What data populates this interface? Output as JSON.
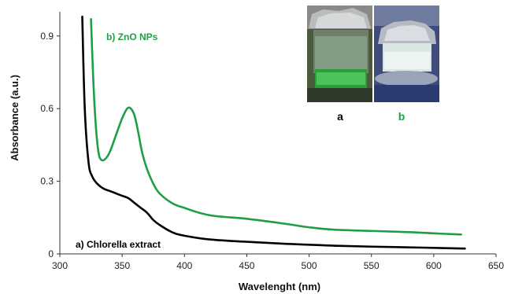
{
  "chart_data": {
    "type": "line",
    "xlabel": "Wavelenght (nm)",
    "ylabel": "Absorbance (a.u.)",
    "xlim": [
      300,
      650
    ],
    "ylim": [
      0,
      1.0
    ],
    "x_ticks": [
      300,
      350,
      400,
      450,
      500,
      550,
      600,
      650
    ],
    "y_ticks": [
      0,
      0.3,
      0.6,
      0.9
    ],
    "x_tick_labels": [
      "300",
      "350",
      "400",
      "450",
      "500",
      "550",
      "600",
      "650"
    ],
    "y_tick_labels": [
      "0",
      "0.3",
      "0.6",
      "0.9"
    ],
    "grid": false,
    "series": [
      {
        "name": "a) Chlorella extract",
        "color": "#000000",
        "x": [
          318,
          320,
          323,
          326,
          330,
          335,
          340,
          345,
          350,
          355,
          360,
          365,
          370,
          375,
          380,
          390,
          400,
          420,
          450,
          480,
          500,
          520,
          550,
          580,
          600,
          625
        ],
        "y": [
          0.98,
          0.6,
          0.38,
          0.32,
          0.29,
          0.27,
          0.26,
          0.25,
          0.24,
          0.23,
          0.21,
          0.19,
          0.17,
          0.14,
          0.12,
          0.09,
          0.075,
          0.06,
          0.05,
          0.042,
          0.038,
          0.034,
          0.03,
          0.027,
          0.025,
          0.022
        ]
      },
      {
        "name": "b) ZnO NPs",
        "color": "#1f9e45",
        "x": [
          325,
          327,
          329,
          331,
          333,
          336,
          340,
          345,
          350,
          354,
          357,
          360,
          363,
          366,
          370,
          375,
          380,
          390,
          400,
          420,
          450,
          480,
          500,
          520,
          550,
          580,
          600,
          622
        ],
        "y": [
          0.97,
          0.7,
          0.52,
          0.42,
          0.39,
          0.39,
          0.42,
          0.49,
          0.56,
          0.6,
          0.6,
          0.57,
          0.5,
          0.42,
          0.35,
          0.29,
          0.25,
          0.21,
          0.19,
          0.16,
          0.145,
          0.125,
          0.11,
          0.1,
          0.095,
          0.09,
          0.085,
          0.08
        ]
      }
    ]
  },
  "inset": {
    "label_a": "a",
    "label_b": "b",
    "label_a_color": "#000000",
    "label_b_color": "#1f9e45"
  }
}
